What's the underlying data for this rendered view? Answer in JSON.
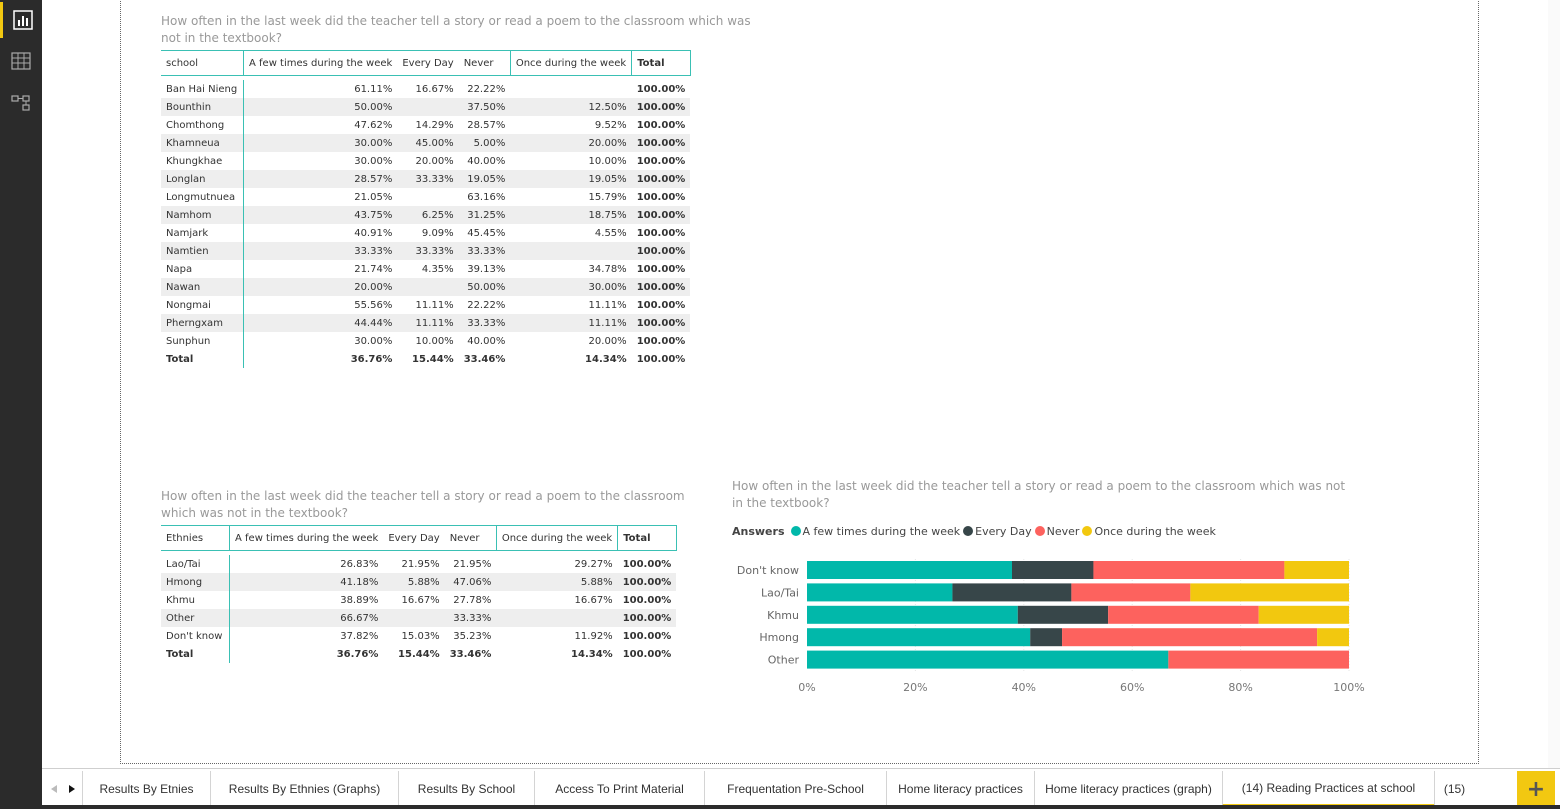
{
  "sidebar": {
    "items": [
      {
        "icon": "report-view-icon",
        "active": true
      },
      {
        "icon": "data-view-icon",
        "active": false
      },
      {
        "icon": "relationships-view-icon",
        "active": false
      }
    ]
  },
  "table_school": {
    "title": "How often in the last week did the teacher tell a story or read a poem to the classroom which was not in the textbook?",
    "columns": [
      "school",
      "A few times during the week",
      "Every Day",
      "Never",
      "Once during the week",
      "Total"
    ],
    "rows": [
      [
        "Ban Hai Nieng",
        "61.11%",
        "16.67%",
        "22.22%",
        "",
        "100.00%"
      ],
      [
        "Bounthin",
        "50.00%",
        "",
        "37.50%",
        "12.50%",
        "100.00%"
      ],
      [
        "Chomthong",
        "47.62%",
        "14.29%",
        "28.57%",
        "9.52%",
        "100.00%"
      ],
      [
        "Khamneua",
        "30.00%",
        "45.00%",
        "5.00%",
        "20.00%",
        "100.00%"
      ],
      [
        "Khungkhae",
        "30.00%",
        "20.00%",
        "40.00%",
        "10.00%",
        "100.00%"
      ],
      [
        "Longlan",
        "28.57%",
        "33.33%",
        "19.05%",
        "19.05%",
        "100.00%"
      ],
      [
        "Longmutnuea",
        "21.05%",
        "",
        "63.16%",
        "15.79%",
        "100.00%"
      ],
      [
        "Namhom",
        "43.75%",
        "6.25%",
        "31.25%",
        "18.75%",
        "100.00%"
      ],
      [
        "Namjark",
        "40.91%",
        "9.09%",
        "45.45%",
        "4.55%",
        "100.00%"
      ],
      [
        "Namtien",
        "33.33%",
        "33.33%",
        "33.33%",
        "",
        "100.00%"
      ],
      [
        "Napa",
        "21.74%",
        "4.35%",
        "39.13%",
        "34.78%",
        "100.00%"
      ],
      [
        "Nawan",
        "20.00%",
        "",
        "50.00%",
        "30.00%",
        "100.00%"
      ],
      [
        "Nongmai",
        "55.56%",
        "11.11%",
        "22.22%",
        "11.11%",
        "100.00%"
      ],
      [
        "Pherngxam",
        "44.44%",
        "11.11%",
        "33.33%",
        "11.11%",
        "100.00%"
      ],
      [
        "Sunphun",
        "30.00%",
        "10.00%",
        "40.00%",
        "20.00%",
        "100.00%"
      ]
    ],
    "total": [
      "Total",
      "36.76%",
      "15.44%",
      "33.46%",
      "14.34%",
      "100.00%"
    ]
  },
  "table_ethnies": {
    "title": "How often in the last week did the teacher tell a story or read a poem to the classroom which was not in the textbook?",
    "columns": [
      "Ethnies",
      "A few times during the week",
      "Every Day",
      "Never",
      "Once during the week",
      "Total"
    ],
    "rows": [
      [
        "Lao/Tai",
        "26.83%",
        "21.95%",
        "21.95%",
        "29.27%",
        "100.00%"
      ],
      [
        "Hmong",
        "41.18%",
        "5.88%",
        "47.06%",
        "5.88%",
        "100.00%"
      ],
      [
        "Khmu",
        "38.89%",
        "16.67%",
        "27.78%",
        "16.67%",
        "100.00%"
      ],
      [
        "Other",
        "66.67%",
        "",
        "33.33%",
        "",
        "100.00%"
      ],
      [
        "Don't know",
        "37.82%",
        "15.03%",
        "35.23%",
        "11.92%",
        "100.00%"
      ]
    ],
    "total": [
      "Total",
      "36.76%",
      "15.44%",
      "33.46%",
      "14.34%",
      "100.00%"
    ]
  },
  "chart_title": "How often in the last week did the teacher tell a story or read a poem to the classroom which was not in the textbook?",
  "chart_data": {
    "type": "bar",
    "orientation": "horizontal",
    "stacked": "100%",
    "title": "How often in the last week did the teacher tell a story or read a poem to the classroom which was not in the textbook?",
    "legend_title": "Answers",
    "legend_position": "top-left",
    "categories": [
      "Don't know",
      "Lao/Tai",
      "Khmu",
      "Hmong",
      "Other"
    ],
    "series": [
      {
        "name": "A few times during the week",
        "color": "#01b8aa",
        "values": [
          37.82,
          26.83,
          38.89,
          41.18,
          66.67
        ]
      },
      {
        "name": "Every Day",
        "color": "#374649",
        "values": [
          15.03,
          21.95,
          16.67,
          5.88,
          0
        ]
      },
      {
        "name": "Never",
        "color": "#fd625e",
        "values": [
          35.23,
          21.95,
          27.78,
          47.06,
          33.33
        ]
      },
      {
        "name": "Once during the week",
        "color": "#f2c80f",
        "values": [
          11.92,
          29.27,
          16.67,
          5.88,
          0
        ]
      }
    ],
    "x_ticks": [
      "0%",
      "20%",
      "40%",
      "60%",
      "80%",
      "100%"
    ],
    "xlim": [
      0,
      100
    ],
    "grid": true
  },
  "tabs": {
    "items": [
      {
        "label": "Results By Etnies",
        "active": false
      },
      {
        "label": "Results By Ethnies (Graphs)",
        "active": false
      },
      {
        "label": "Results By School",
        "active": false
      },
      {
        "label": "Access To Print Material",
        "active": false
      },
      {
        "label": "Frequentation Pre-School",
        "active": false
      },
      {
        "label": "Home literacy practices",
        "active": false
      },
      {
        "label": "Home literacy practices (graph)",
        "active": false
      },
      {
        "label": "(14) Reading Practices at school",
        "active": true
      },
      {
        "label": "(15)",
        "active": false
      }
    ],
    "add_symbol": "+"
  },
  "colors": {
    "accent": "#f2c811",
    "table_border": "#3ac0b4",
    "sidebar_bg": "#2b2b2b"
  }
}
